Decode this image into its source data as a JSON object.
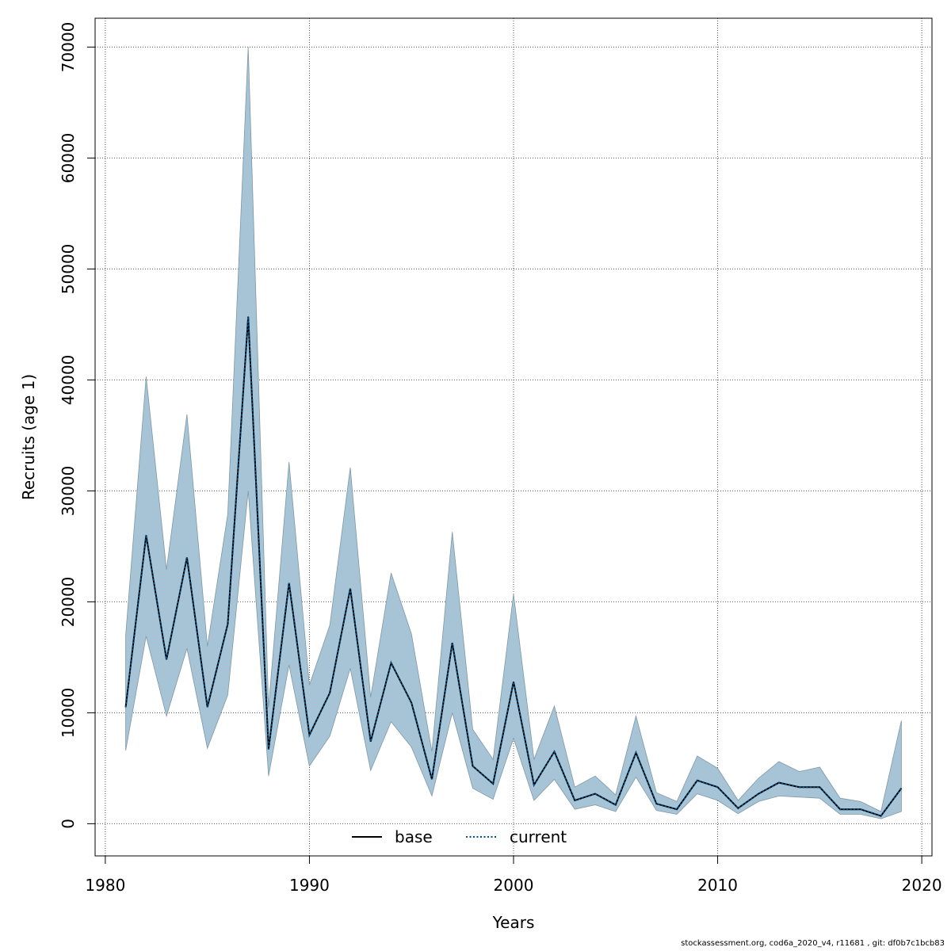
{
  "chart_data": {
    "type": "area",
    "xlabel": "Years",
    "ylabel": "Recruits (age 1)",
    "xlim": [
      1979.5,
      2020.5
    ],
    "ylim": [
      -2900,
      72600
    ],
    "x_ticks": [
      1980,
      1990,
      2000,
      2010,
      2020
    ],
    "y_ticks": [
      0,
      10000,
      20000,
      30000,
      40000,
      50000,
      60000,
      70000
    ],
    "grid": true,
    "legend_position": "bottom-center",
    "x": [
      1981,
      1982,
      1983,
      1984,
      1985,
      1986,
      1987,
      1988,
      1989,
      1990,
      1991,
      1992,
      1993,
      1994,
      1995,
      1996,
      1997,
      1998,
      1999,
      2000,
      2001,
      2002,
      2003,
      2004,
      2005,
      2006,
      2007,
      2008,
      2009,
      2010,
      2011,
      2012,
      2013,
      2014,
      2015,
      2016,
      2017,
      2018,
      2019
    ],
    "series": [
      {
        "name": "base",
        "color": "#000000",
        "style": "solid",
        "values": [
          10500,
          26000,
          14800,
          24000,
          10500,
          18000,
          45700,
          6700,
          21700,
          8000,
          11800,
          21200,
          7400,
          14500,
          10900,
          4000,
          16300,
          5200,
          3600,
          12800,
          3500,
          6500,
          2100,
          2700,
          1700,
          6400,
          1800,
          1300,
          3900,
          3300,
          1400,
          2700,
          3700,
          3300,
          3300,
          1300,
          1300,
          700,
          3200
        ]
      },
      {
        "name": "current",
        "color": "#00528a",
        "style": "dotted",
        "values": [
          10500,
          26000,
          14800,
          24000,
          10500,
          18000,
          45700,
          6700,
          21700,
          8000,
          11800,
          21200,
          7400,
          14500,
          10900,
          4000,
          16300,
          5200,
          3600,
          12800,
          3500,
          6500,
          2100,
          2700,
          1700,
          6400,
          1800,
          1300,
          3900,
          3300,
          1400,
          2700,
          3700,
          3300,
          3300,
          1300,
          1300,
          700,
          3200
        ]
      }
    ],
    "band": {
      "color": "#a6c4d5",
      "upper": [
        17000,
        40300,
        22900,
        36900,
        16000,
        27900,
        70000,
        10500,
        32600,
        12500,
        17900,
        32100,
        11400,
        22600,
        17100,
        6500,
        26300,
        8500,
        5800,
        20700,
        5800,
        10600,
        3300,
        4300,
        2600,
        9700,
        2800,
        2000,
        6100,
        5000,
        2100,
        4100,
        5600,
        4700,
        5100,
        2300,
        2000,
        1100,
        9300
      ],
      "lower": [
        6600,
        16900,
        9700,
        15800,
        6800,
        11600,
        30000,
        4300,
        14300,
        5200,
        7900,
        14000,
        4800,
        9200,
        6900,
        2500,
        10000,
        3200,
        2200,
        7700,
        2100,
        4000,
        1300,
        1700,
        1100,
        4200,
        1200,
        850,
        2700,
        2100,
        900,
        2000,
        2500,
        2400,
        2300,
        850,
        850,
        450,
        1100
      ]
    },
    "legend": [
      "base",
      "current"
    ]
  },
  "footer": "stockassessment.org, cod6a_2020_v4, r11681 , git: df0b7c1bcb83"
}
